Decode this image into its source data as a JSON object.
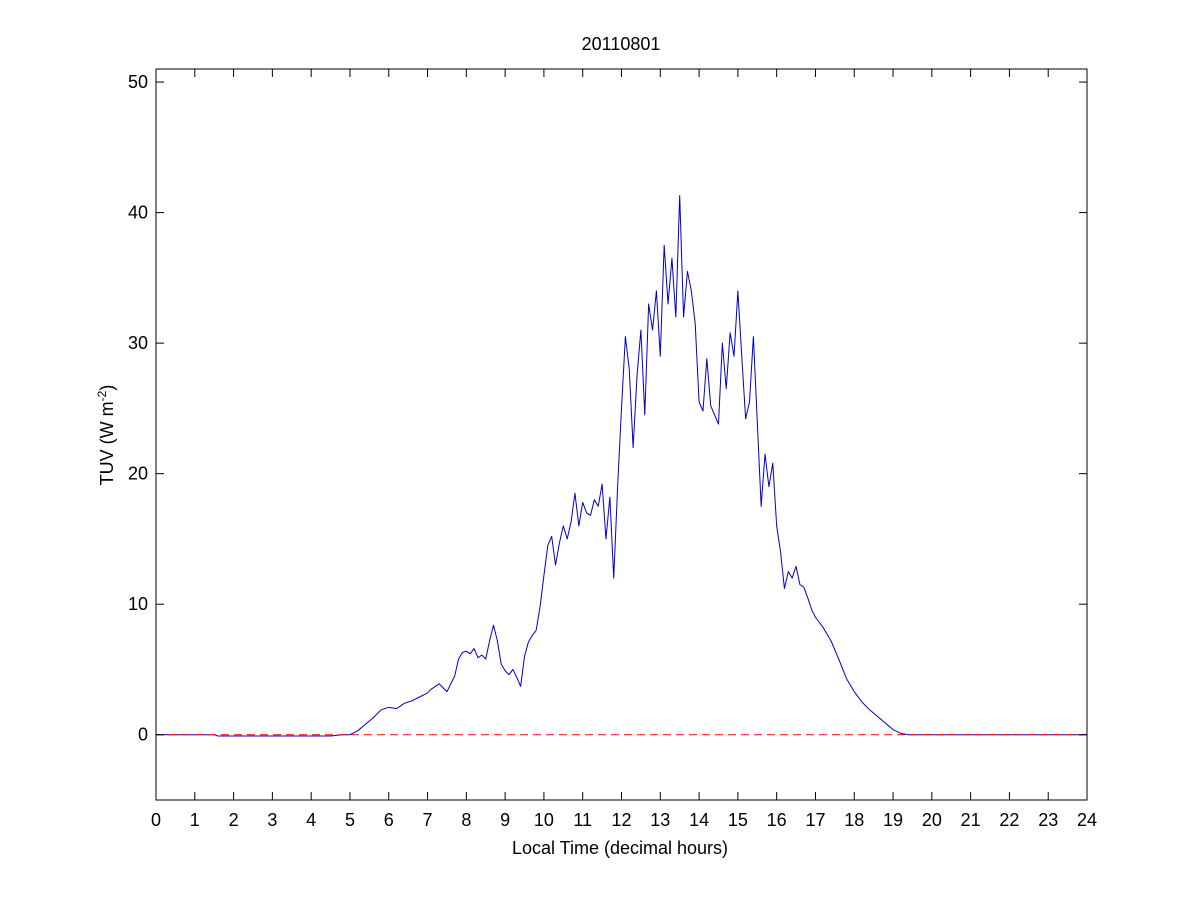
{
  "chart_data": {
    "type": "line",
    "title": "20110801",
    "xlabel": "Local Time (decimal hours)",
    "ylabel_main": "TUV (W m",
    "ylabel_sup": "-2",
    "ylabel_tail": ")",
    "xlim": [
      0,
      24
    ],
    "ylim": [
      -5,
      51
    ],
    "xticks": [
      0,
      1,
      2,
      3,
      4,
      5,
      6,
      7,
      8,
      9,
      10,
      11,
      12,
      13,
      14,
      15,
      16,
      17,
      18,
      19,
      20,
      21,
      22,
      23,
      24
    ],
    "yticks": [
      0,
      10,
      20,
      30,
      40,
      50
    ],
    "grid": false,
    "legend": "none",
    "series": [
      {
        "color": "#0000cc",
        "style": "solid",
        "x": [
          0,
          1.5,
          1.6,
          2.0,
          2.5,
          3.0,
          3.5,
          4.0,
          4.5,
          4.8,
          5.0,
          5.2,
          5.4,
          5.6,
          5.8,
          6.0,
          6.2,
          6.4,
          6.6,
          6.8,
          7.0,
          7.1,
          7.2,
          7.3,
          7.4,
          7.5,
          7.6,
          7.7,
          7.8,
          7.9,
          8.0,
          8.1,
          8.2,
          8.3,
          8.4,
          8.5,
          8.6,
          8.7,
          8.8,
          8.9,
          9.0,
          9.1,
          9.2,
          9.3,
          9.4,
          9.5,
          9.6,
          9.7,
          9.8,
          9.9,
          10.0,
          10.1,
          10.2,
          10.3,
          10.4,
          10.5,
          10.6,
          10.7,
          10.8,
          10.9,
          11.0,
          11.1,
          11.2,
          11.3,
          11.4,
          11.5,
          11.6,
          11.7,
          11.8,
          11.9,
          12.0,
          12.1,
          12.2,
          12.3,
          12.4,
          12.5,
          12.6,
          12.7,
          12.8,
          12.9,
          13.0,
          13.1,
          13.2,
          13.3,
          13.4,
          13.5,
          13.6,
          13.7,
          13.8,
          13.9,
          14.0,
          14.1,
          14.2,
          14.3,
          14.4,
          14.5,
          14.6,
          14.7,
          14.8,
          14.9,
          15.0,
          15.1,
          15.2,
          15.3,
          15.4,
          15.5,
          15.6,
          15.7,
          15.8,
          15.9,
          16.0,
          16.1,
          16.2,
          16.3,
          16.4,
          16.5,
          16.6,
          16.7,
          16.8,
          16.9,
          17.0,
          17.2,
          17.4,
          17.6,
          17.8,
          18.0,
          18.2,
          18.4,
          18.6,
          18.8,
          19.0,
          19.2,
          19.4,
          19.5,
          19.6,
          20.0,
          21.0,
          22.0,
          23.0,
          24.0
        ],
        "y": [
          0,
          0,
          -0.1,
          -0.1,
          -0.1,
          -0.1,
          -0.1,
          -0.1,
          -0.1,
          0,
          0,
          0.3,
          0.8,
          1.3,
          1.9,
          2.1,
          2.0,
          2.4,
          2.6,
          2.9,
          3.2,
          3.5,
          3.7,
          3.9,
          3.6,
          3.3,
          3.9,
          4.5,
          5.8,
          6.3,
          6.4,
          6.2,
          6.6,
          5.9,
          6.1,
          5.8,
          7.2,
          8.4,
          7.2,
          5.4,
          4.9,
          4.6,
          5.0,
          4.4,
          3.7,
          6.0,
          7.1,
          7.6,
          8.0,
          9.8,
          12.2,
          14.5,
          15.2,
          13.0,
          14.7,
          16.0,
          15.0,
          16.3,
          18.5,
          16.0,
          17.8,
          17.0,
          16.8,
          18.0,
          17.5,
          19.2,
          15.0,
          18.2,
          12.0,
          19.0,
          25.0,
          30.5,
          28.0,
          22.0,
          27.5,
          31.0,
          24.5,
          33.0,
          31.0,
          34.0,
          29.0,
          37.5,
          33.0,
          36.5,
          32.0,
          41.3,
          32.0,
          35.5,
          34.0,
          31.5,
          25.5,
          24.8,
          28.8,
          25.2,
          24.5,
          23.8,
          30.0,
          26.5,
          30.8,
          29.0,
          34.0,
          29.0,
          24.2,
          25.5,
          30.5,
          24.0,
          17.5,
          21.5,
          19.0,
          20.8,
          16.0,
          14.0,
          11.2,
          12.5,
          12.0,
          12.9,
          11.5,
          11.3,
          10.5,
          9.6,
          9.0,
          8.2,
          7.2,
          5.8,
          4.3,
          3.3,
          2.5,
          1.9,
          1.4,
          0.9,
          0.4,
          0.1,
          0,
          0,
          0,
          0,
          0,
          0,
          0,
          0
        ]
      },
      {
        "color": "#ff0000",
        "style": "dashed",
        "x": [
          0,
          24
        ],
        "y": [
          0,
          0
        ]
      }
    ]
  }
}
